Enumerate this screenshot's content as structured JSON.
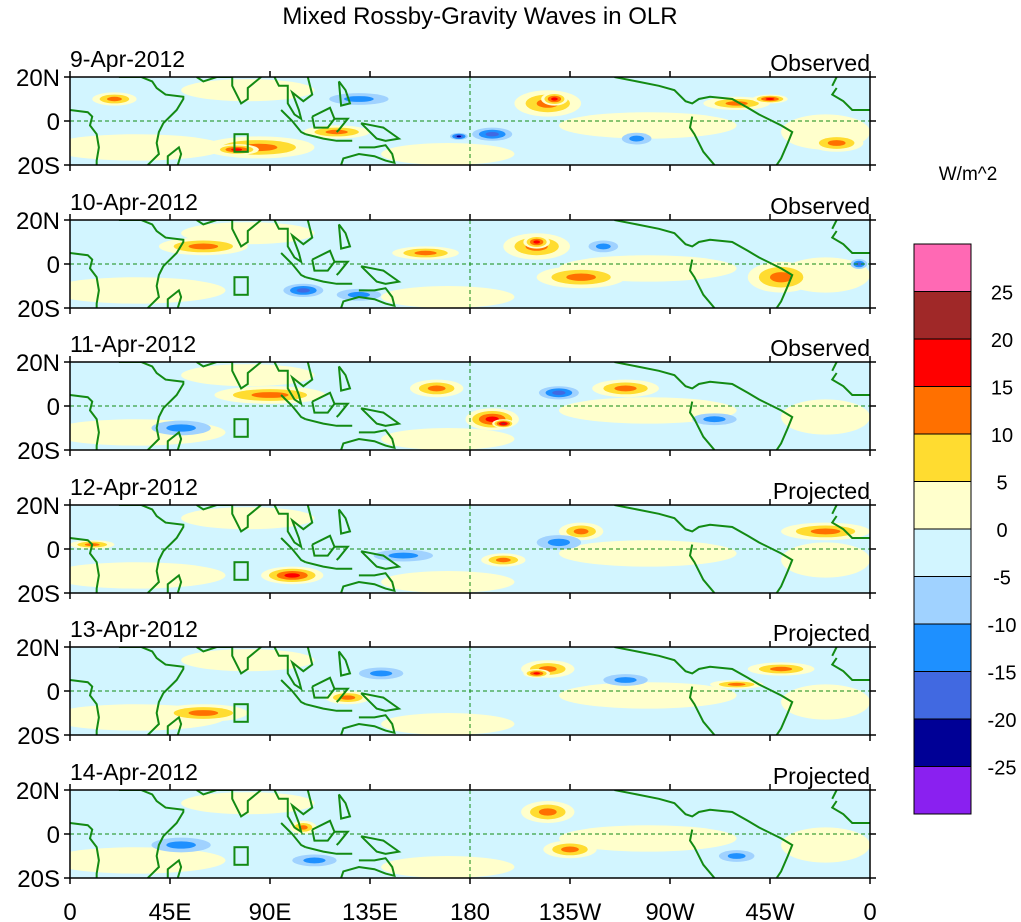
{
  "chart_data": {
    "type": "heatmap",
    "title": "Mixed Rossby-Gravity Waves in OLR",
    "units": "W/m^2",
    "x_ticks": [
      "0",
      "45E",
      "90E",
      "135E",
      "180",
      "135W",
      "90W",
      "45W",
      "0"
    ],
    "y_ticks": [
      "20N",
      "0",
      "20S"
    ],
    "lon_range": [
      0,
      360
    ],
    "lat_range": [
      -20,
      20
    ],
    "colorbar": {
      "levels": [
        "25",
        "20",
        "15",
        "10",
        "5",
        "0",
        "-5",
        "-10",
        "-15",
        "-20",
        "-25"
      ],
      "colors": [
        "#ff69b4",
        "#a02828",
        "#ff0000",
        "#ff7000",
        "#ffdc30",
        "#ffffcc",
        "#d2f5ff",
        "#a0d2ff",
        "#1e90ff",
        "#4169e1",
        "#000096",
        "#8a20f0"
      ]
    },
    "panels": [
      {
        "date": "9-Apr-2012",
        "type": "Observed",
        "blobs": [
          [
            85,
            -12,
            7,
            25,
            5
          ],
          [
            75,
            -13,
            12,
            10,
            2.5
          ],
          [
            215,
            8,
            8,
            15,
            6
          ],
          [
            218,
            10,
            13,
            6,
            3
          ],
          [
            190,
            -6,
            -12,
            12,
            4
          ],
          [
            175,
            -7,
            -20,
            5,
            2
          ],
          [
            120,
            -5,
            7,
            15,
            3
          ],
          [
            300,
            8,
            8,
            15,
            3
          ],
          [
            315,
            10,
            12,
            8,
            2
          ],
          [
            345,
            -10,
            7,
            12,
            4
          ],
          [
            255,
            -8,
            -8,
            10,
            4
          ],
          [
            130,
            10,
            -8,
            20,
            4
          ],
          [
            20,
            10,
            6,
            10,
            3
          ]
        ]
      },
      {
        "date": "10-Apr-2012",
        "type": "Observed",
        "blobs": [
          [
            105,
            -12,
            -13,
            12,
            4
          ],
          [
            210,
            8,
            9,
            15,
            6
          ],
          [
            210,
            10,
            13,
            6,
            3
          ],
          [
            230,
            -6,
            7,
            20,
            5
          ],
          [
            320,
            -6,
            7,
            15,
            7
          ],
          [
            160,
            5,
            7,
            15,
            3
          ],
          [
            240,
            8,
            -8,
            10,
            4
          ],
          [
            355,
            0,
            -13,
            5,
            3
          ],
          [
            60,
            8,
            6,
            20,
            4
          ],
          [
            130,
            -14,
            -7,
            15,
            4
          ]
        ]
      },
      {
        "date": "11-Apr-2012",
        "type": "Observed",
        "blobs": [
          [
            90,
            5,
            7,
            25,
            4
          ],
          [
            165,
            8,
            9,
            12,
            4
          ],
          [
            190,
            -6,
            13,
            12,
            5
          ],
          [
            195,
            -8,
            18,
            5,
            2
          ],
          [
            220,
            6,
            -13,
            12,
            4
          ],
          [
            50,
            -10,
            -8,
            20,
            5
          ],
          [
            290,
            -6,
            -8,
            15,
            4
          ],
          [
            250,
            8,
            7,
            15,
            4
          ]
        ]
      },
      {
        "date": "12-Apr-2012",
        "type": "Projected",
        "blobs": [
          [
            100,
            -12,
            13,
            14,
            4
          ],
          [
            195,
            -5,
            9,
            10,
            3
          ],
          [
            230,
            8,
            7,
            10,
            4
          ],
          [
            220,
            3,
            -10,
            15,
            5
          ],
          [
            340,
            8,
            6,
            20,
            4
          ],
          [
            150,
            -3,
            -8,
            20,
            4
          ],
          [
            10,
            2,
            8,
            10,
            2
          ]
        ]
      },
      {
        "date": "13-Apr-2012",
        "type": "Projected",
        "blobs": [
          [
            215,
            10,
            8,
            12,
            4
          ],
          [
            210,
            8,
            13,
            6,
            2
          ],
          [
            125,
            -3,
            8,
            10,
            3
          ],
          [
            250,
            5,
            -8,
            15,
            4
          ],
          [
            140,
            8,
            -8,
            15,
            4
          ],
          [
            300,
            3,
            7,
            12,
            2
          ],
          [
            320,
            10,
            6,
            15,
            3
          ],
          [
            60,
            -10,
            6,
            20,
            4
          ]
        ]
      },
      {
        "date": "14-Apr-2012",
        "type": "Projected",
        "blobs": [
          [
            215,
            10,
            7,
            12,
            5
          ],
          [
            225,
            -7,
            6,
            12,
            4
          ],
          [
            110,
            -12,
            -8,
            15,
            4
          ],
          [
            105,
            3,
            8,
            6,
            3
          ],
          [
            50,
            -5,
            -6,
            20,
            5
          ],
          [
            300,
            -10,
            -6,
            12,
            4
          ]
        ]
      }
    ]
  }
}
